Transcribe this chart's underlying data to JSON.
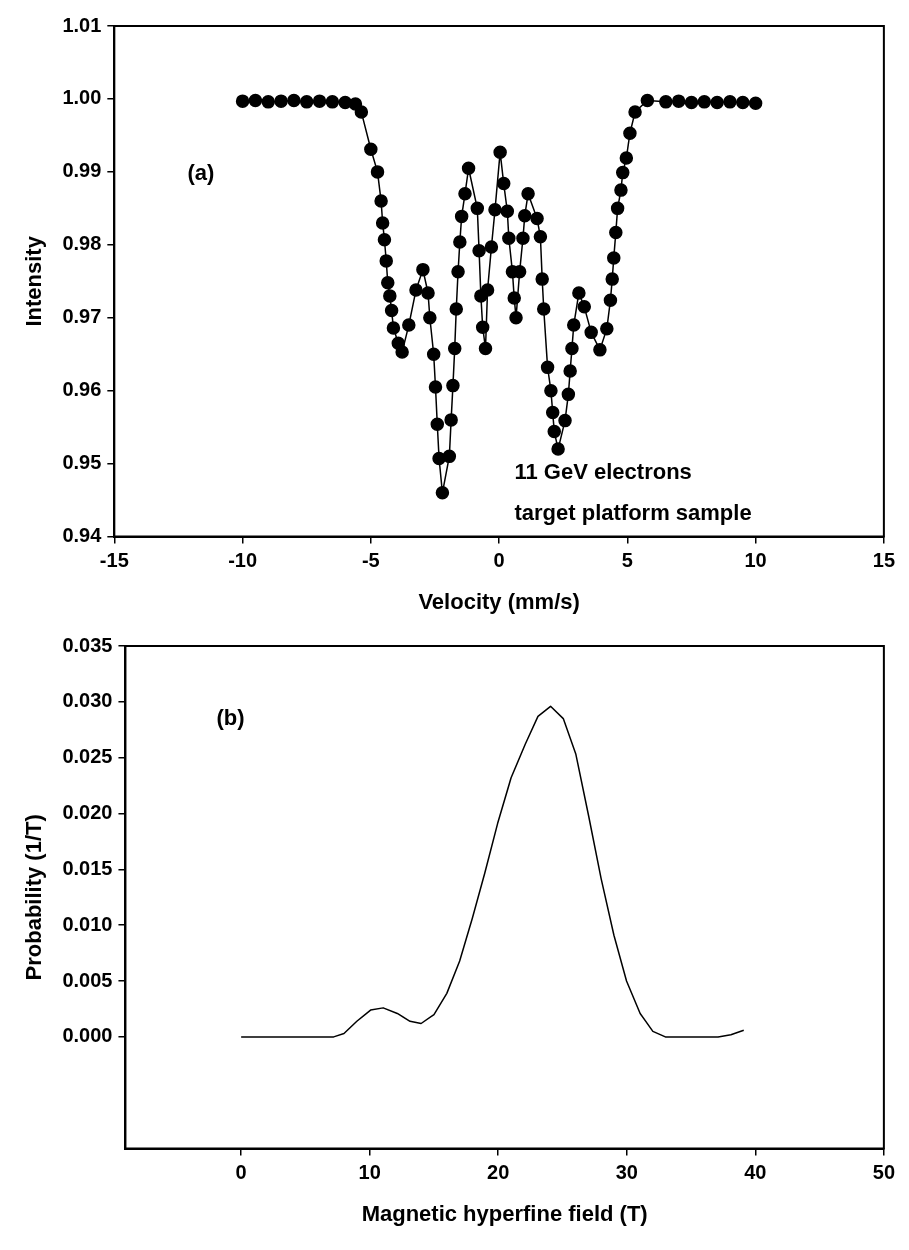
{
  "chart_data": [
    {
      "type": "line",
      "xlabel": "Velocity (mm/s)",
      "ylabel": "Intensity",
      "marker": "circle",
      "grid": false,
      "legend": false,
      "annotations": [
        "(a)",
        "11 GeV electrons",
        "target platform sample"
      ],
      "xlim": [
        -15,
        15
      ],
      "xticks": [
        -15,
        -10,
        -5,
        0,
        5,
        10,
        15
      ],
      "ylim": [
        0.94,
        1.01
      ],
      "yticks": [
        0.94,
        0.95,
        0.96,
        0.97,
        0.98,
        0.99,
        {
          "value": 1,
          "label": "1.00"
        },
        1.01
      ],
      "series": [
        {
          "color": "#000000",
          "x": [
            -10,
            -9.5,
            -9,
            -8.5,
            -8,
            -7.5,
            -7,
            -6.5,
            -6,
            -5.6,
            -5.37,
            -5.0,
            -4.74,
            -4.6,
            -4.54,
            -4.47,
            -4.4,
            -4.34,
            -4.26,
            -4.19,
            -4.12,
            -3.93,
            -3.78,
            -3.52,
            -3.24,
            -2.97,
            -2.77,
            -2.7,
            -2.55,
            -2.48,
            -2.41,
            -2.34,
            -2.21,
            -1.94,
            -1.87,
            -1.8,
            -1.73,
            -1.67,
            -1.6,
            -1.53,
            -1.46,
            -1.33,
            -1.19,
            -0.85,
            -0.78,
            -0.71,
            -0.64,
            -0.53,
            -0.45,
            -0.3,
            -0.16,
            0.04,
            0.18,
            0.32,
            0.38,
            0.52,
            0.59,
            0.66,
            0.8,
            0.93,
            1.0,
            1.13,
            1.48,
            1.61,
            1.68,
            1.74,
            1.89,
            2.02,
            2.09,
            2.15,
            2.3,
            2.57,
            2.7,
            2.77,
            2.84,
            2.91,
            3.11,
            3.32,
            3.59,
            3.93,
            4.2,
            4.34,
            4.41,
            4.47,
            4.55,
            4.62,
            4.75,
            4.82,
            4.96,
            5.1,
            5.3,
            5.78,
            6.5,
            7,
            7.5,
            8,
            8.5,
            9,
            9.5,
            10
          ],
          "values": [
            0.9997,
            0.9998,
            0.9996,
            0.9997,
            0.9998,
            0.9996,
            0.9997,
            0.9996,
            0.9995,
            0.9993,
            0.9982,
            0.9931,
            0.99,
            0.986,
            0.983,
            0.9807,
            0.9778,
            0.9748,
            0.973,
            0.971,
            0.9686,
            0.9665,
            0.9653,
            0.969,
            0.9738,
            0.9766,
            0.9734,
            0.97,
            0.965,
            0.9605,
            0.9554,
            0.9507,
            0.946,
            0.951,
            0.956,
            0.9607,
            0.9658,
            0.9712,
            0.9763,
            0.9804,
            0.9839,
            0.987,
            0.9905,
            0.985,
            0.9792,
            0.973,
            0.9687,
            0.9658,
            0.9738,
            0.9797,
            0.9848,
            0.9927,
            0.9884,
            0.9846,
            0.9809,
            0.9763,
            0.9727,
            0.97,
            0.9763,
            0.9809,
            0.984,
            0.987,
            0.9836,
            0.9811,
            0.9753,
            0.9712,
            0.9632,
            0.96,
            0.957,
            0.9544,
            0.952,
            0.9559,
            0.9595,
            0.9627,
            0.9658,
            0.969,
            0.9734,
            0.9715,
            0.968,
            0.9656,
            0.9685,
            0.9724,
            0.9753,
            0.9782,
            0.9817,
            0.985,
            0.9875,
            0.9899,
            0.9919,
            0.9953,
            0.9982,
            0.9998,
            0.9996,
            0.9997,
            0.9995,
            0.9996,
            0.9995,
            0.9996,
            0.9995,
            0.9994
          ]
        }
      ]
    },
    {
      "type": "line",
      "xlabel": "Magnetic hyperfine field (T)",
      "ylabel": "Probability (1/T)",
      "grid": false,
      "legend": false,
      "annotations": [
        "(b)"
      ],
      "xlim": [
        -9,
        50
      ],
      "xticks": [
        0,
        10,
        20,
        30,
        40,
        50
      ],
      "ylim": [
        -0.01,
        0.035
      ],
      "yticks": [
        {
          "value": 0,
          "label": "0.000"
        },
        {
          "value": 0.005,
          "label": "0.005"
        },
        {
          "value": 0.01,
          "label": "0.010"
        },
        {
          "value": 0.015,
          "label": "0.015"
        },
        {
          "value": 0.02,
          "label": "0.020"
        },
        {
          "value": 0.025,
          "label": "0.025"
        },
        {
          "value": 0.03,
          "label": "0.030"
        },
        {
          "value": 0.035,
          "label": "0.035"
        }
      ],
      "series": [
        {
          "color": "#000000",
          "x": [
            0,
            7.2,
            8.0,
            9.0,
            10.07,
            11.05,
            12.15,
            13.14,
            14.0,
            15.0,
            16.0,
            17.0,
            17.98,
            18.96,
            19.95,
            21.0,
            22.1,
            23.09,
            24.07,
            25.06,
            26.04,
            27.03,
            28.0,
            29.0,
            29.98,
            31.04,
            32.03,
            33.0,
            37.1,
            38.1,
            39.1
          ],
          "values": [
            0,
            0,
            0.0003,
            0.0014,
            0.0024,
            0.0026,
            0.0021,
            0.0014,
            0.0012,
            0.002,
            0.0039,
            0.0068,
            0.0106,
            0.0147,
            0.0191,
            0.0232,
            0.0262,
            0.0287,
            0.0296,
            0.0285,
            0.0253,
            0.0198,
            0.0142,
            0.0091,
            0.005,
            0.0021,
            0.0005,
            0,
            0,
            0.0002,
            0.0006
          ]
        }
      ]
    }
  ]
}
